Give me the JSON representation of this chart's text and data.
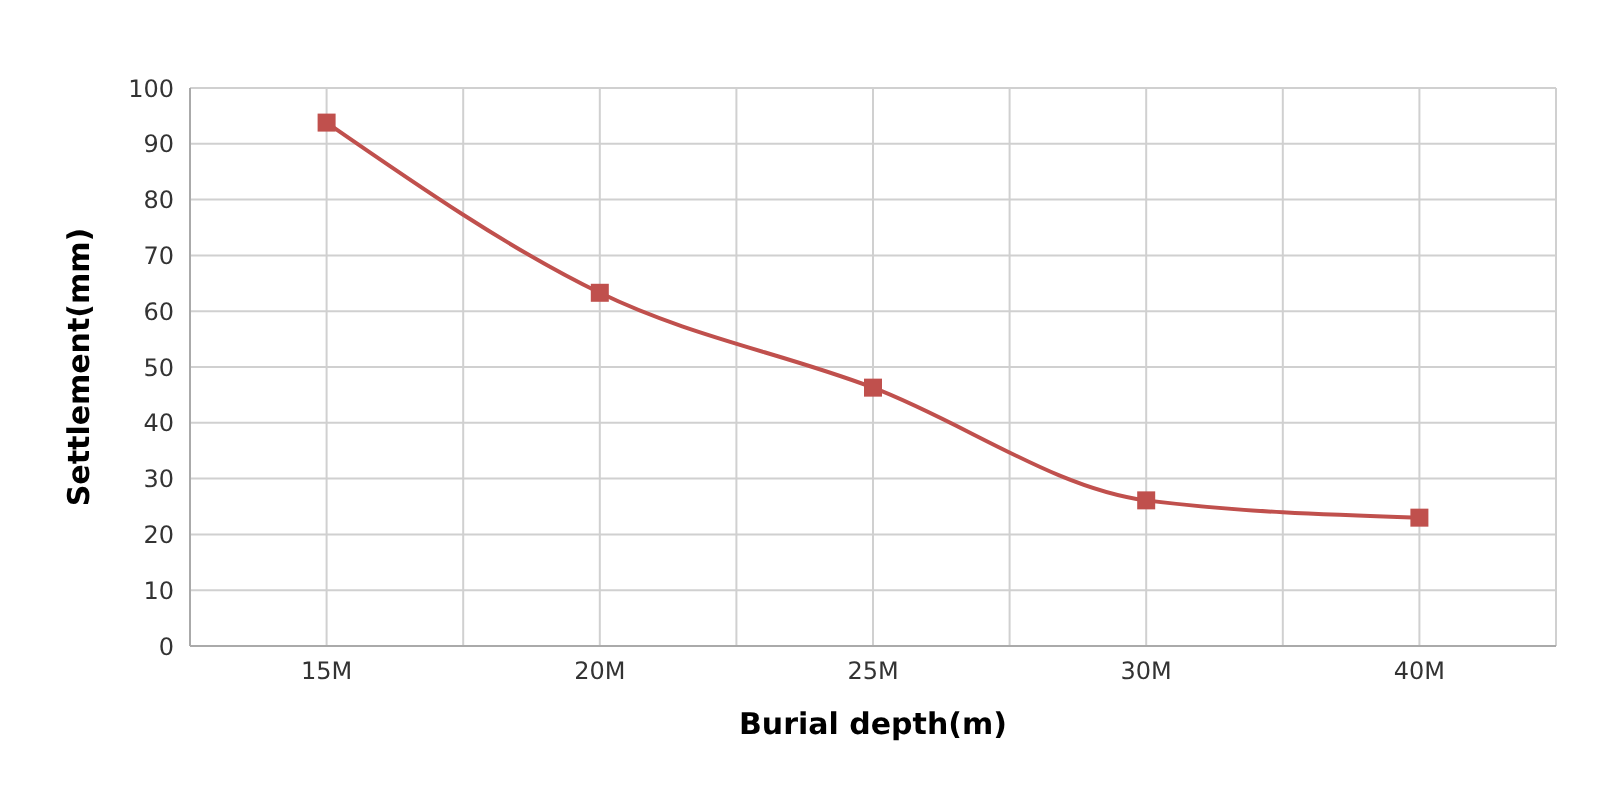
{
  "chart_data": {
    "type": "line",
    "xlabel": "Burial depth(m)",
    "ylabel": "Settlement(mm)",
    "categories": [
      "15M",
      "20M",
      "25M",
      "30M",
      "40M"
    ],
    "series": [
      {
        "color": "#c0504d",
        "values": [
          93.8,
          63.3,
          46.3,
          26.1,
          23.0
        ]
      }
    ],
    "ylim": [
      0,
      100
    ],
    "yticks": [
      0,
      10,
      20,
      30,
      40,
      50,
      60,
      70,
      80,
      90,
      100
    ],
    "grid": true,
    "marker": "square",
    "line_style": "solid",
    "legend": false
  }
}
